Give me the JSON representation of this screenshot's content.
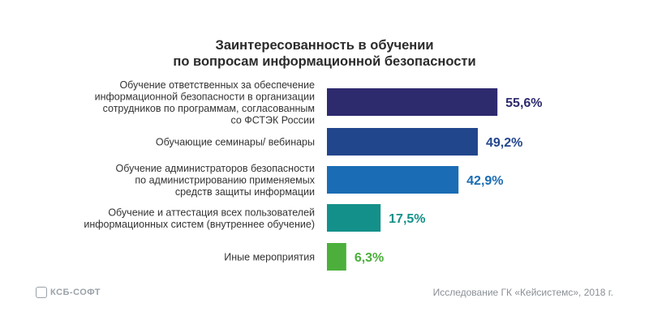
{
  "chart_data": {
    "type": "bar",
    "orientation": "horizontal",
    "title_lines": [
      "Заинтересованность в обучении",
      "по вопросам информационной безопасности"
    ],
    "categories": [
      [
        "Обучение ответственных за обеспечение",
        "информационной безопасности в организации",
        "сотрудников по программам, согласованным",
        "со ФСТЭК России"
      ],
      [
        "Обучающие семинары/ вебинары"
      ],
      [
        "Обучение администраторов безопасности",
        "по администрированию применяемых",
        "средств защиты информации"
      ],
      [
        "Обучение и аттестация всех пользователей",
        "информационных систем (внутреннее обучение)"
      ],
      [
        "Иные мероприятия"
      ]
    ],
    "values": [
      55.6,
      49.2,
      42.9,
      17.5,
      6.3
    ],
    "value_labels": [
      "55,6%",
      "49,2%",
      "42,9%",
      "17,5%",
      "6,3%"
    ],
    "colors": [
      "#2e2a6e",
      "#22468c",
      "#1a6cb4",
      "#14908a",
      "#4caf3c"
    ],
    "xlim": [
      0,
      100
    ],
    "grid": false
  },
  "footer": {
    "logo_text": "КСБ-СОФТ",
    "source": "Исследование ГК «Кейсистемс», 2018 г."
  }
}
